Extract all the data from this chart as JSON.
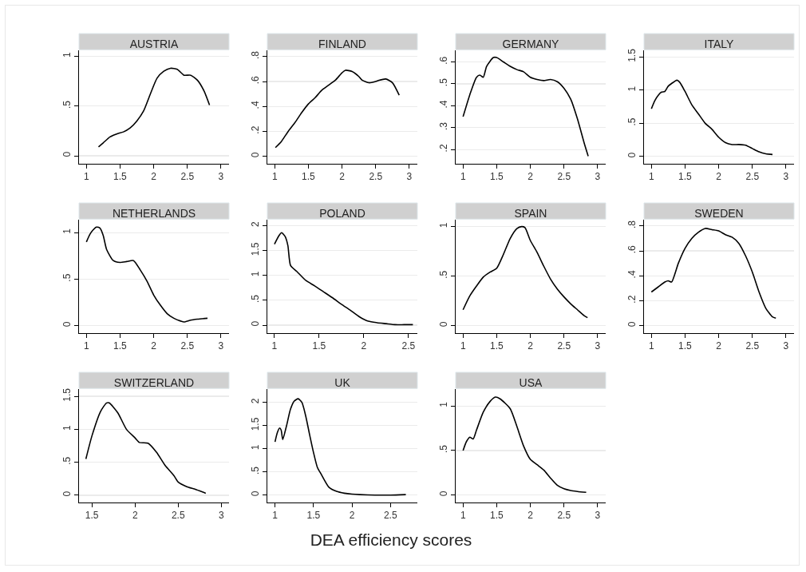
{
  "chart_data": [
    {
      "type": "line",
      "title": "AUSTRIA",
      "grid": "y",
      "xlim": [
        0.89,
        3.12
      ],
      "xticks": [
        1,
        1.5,
        2,
        2.5,
        3
      ],
      "ylim": [
        -0.08,
        1.06
      ],
      "yticks": [
        0,
        {
          "value": 0.5,
          "label": ".5"
        },
        1
      ],
      "x": [
        1.18,
        1.25,
        1.35,
        1.45,
        1.55,
        1.65,
        1.75,
        1.85,
        1.95,
        2.05,
        2.15,
        2.25,
        2.35,
        2.45,
        2.55,
        2.65,
        2.75,
        2.83
      ],
      "series": [
        {
          "color": "#000000",
          "values": [
            0.09,
            0.13,
            0.19,
            0.22,
            0.24,
            0.28,
            0.35,
            0.45,
            0.62,
            0.78,
            0.85,
            0.88,
            0.87,
            0.81,
            0.81,
            0.76,
            0.65,
            0.51
          ]
        }
      ]
    },
    {
      "type": "line",
      "title": "FINLAND",
      "grid": "y",
      "xlim": [
        0.89,
        3.12
      ],
      "xticks": [
        1,
        1.5,
        2,
        2.5,
        3
      ],
      "ylim": [
        -0.06,
        0.85
      ],
      "yticks": [
        0,
        {
          "value": 0.2,
          "label": ".2"
        },
        {
          "value": 0.4,
          "label": ".4"
        },
        {
          "value": 0.6,
          "label": ".6"
        },
        {
          "value": 0.8,
          "label": ".8"
        }
      ],
      "x": [
        1.01,
        1.1,
        1.2,
        1.3,
        1.4,
        1.5,
        1.6,
        1.7,
        1.8,
        1.9,
        2.0,
        2.05,
        2.15,
        2.25,
        2.3,
        2.4,
        2.5,
        2.55,
        2.65,
        2.75,
        2.85
      ],
      "series": [
        {
          "color": "#000000",
          "values": [
            0.07,
            0.12,
            0.2,
            0.27,
            0.35,
            0.42,
            0.47,
            0.53,
            0.57,
            0.61,
            0.67,
            0.69,
            0.68,
            0.64,
            0.61,
            0.59,
            0.6,
            0.61,
            0.62,
            0.59,
            0.49
          ]
        }
      ]
    },
    {
      "type": "line",
      "title": "GERMANY",
      "grid": "y",
      "xlim": [
        0.89,
        3.12
      ],
      "xticks": [
        1,
        1.5,
        2,
        2.5,
        3
      ],
      "ylim": [
        0.135,
        0.653
      ],
      "yticks": [
        {
          "value": 0.2,
          "label": ".2"
        },
        {
          "value": 0.3,
          "label": ".3"
        },
        {
          "value": 0.4,
          "label": ".4"
        },
        {
          "value": 0.5,
          "label": ".5"
        },
        {
          "value": 0.6,
          "label": ".6"
        }
      ],
      "x": [
        1.0,
        1.1,
        1.2,
        1.25,
        1.3,
        1.35,
        1.45,
        1.5,
        1.6,
        1.7,
        1.8,
        1.9,
        2.0,
        2.1,
        2.2,
        2.3,
        2.4,
        2.5,
        2.6,
        2.7,
        2.8,
        2.86
      ],
      "series": [
        {
          "color": "#000000",
          "values": [
            0.35,
            0.45,
            0.53,
            0.54,
            0.53,
            0.58,
            0.62,
            0.62,
            0.6,
            0.58,
            0.565,
            0.555,
            0.53,
            0.52,
            0.515,
            0.52,
            0.51,
            0.48,
            0.43,
            0.34,
            0.23,
            0.17
          ]
        }
      ]
    },
    {
      "type": "line",
      "title": "ITALY",
      "grid": "y",
      "xlim": [
        0.89,
        3.12
      ],
      "xticks": [
        1,
        1.5,
        2,
        2.5,
        3
      ],
      "ylim": [
        -0.11,
        1.6
      ],
      "yticks": [
        0,
        {
          "value": 0.5,
          "label": ".5"
        },
        1,
        1.5
      ],
      "x": [
        1.0,
        1.05,
        1.1,
        1.15,
        1.2,
        1.25,
        1.3,
        1.38,
        1.42,
        1.5,
        1.6,
        1.7,
        1.8,
        1.9,
        2.0,
        2.1,
        2.2,
        2.3,
        2.4,
        2.5,
        2.6,
        2.7,
        2.8
      ],
      "series": [
        {
          "color": "#000000",
          "values": [
            0.72,
            0.84,
            0.92,
            0.97,
            0.98,
            1.06,
            1.1,
            1.15,
            1.12,
            0.98,
            0.78,
            0.64,
            0.5,
            0.41,
            0.29,
            0.21,
            0.18,
            0.18,
            0.17,
            0.12,
            0.07,
            0.04,
            0.03
          ]
        }
      ]
    },
    {
      "type": "line",
      "title": "NETHERLANDS",
      "grid": "y",
      "xlim": [
        0.89,
        3.12
      ],
      "xticks": [
        1,
        1.5,
        2,
        2.5,
        3
      ],
      "ylim": [
        -0.08,
        1.14
      ],
      "yticks": [
        0,
        {
          "value": 0.5,
          "label": ".5"
        },
        1
      ],
      "x": [
        1.0,
        1.05,
        1.1,
        1.15,
        1.2,
        1.25,
        1.3,
        1.4,
        1.5,
        1.6,
        1.7,
        1.8,
        1.9,
        2.0,
        2.1,
        2.2,
        2.3,
        2.4,
        2.45,
        2.55,
        2.65,
        2.8
      ],
      "series": [
        {
          "color": "#000000",
          "values": [
            0.9,
            0.98,
            1.03,
            1.06,
            1.05,
            0.97,
            0.82,
            0.7,
            0.68,
            0.69,
            0.7,
            0.6,
            0.48,
            0.33,
            0.22,
            0.13,
            0.08,
            0.05,
            0.04,
            0.06,
            0.07,
            0.08
          ]
        }
      ]
    },
    {
      "type": "line",
      "title": "POLAND",
      "grid": "y",
      "xlim": [
        0.92,
        2.6
      ],
      "xticks": [
        1,
        1.5,
        2,
        2.5
      ],
      "ylim": [
        -0.16,
        2.12
      ],
      "yticks": [
        0,
        {
          "value": 0.5,
          "label": ".5"
        },
        1,
        1.5,
        2
      ],
      "x": [
        1.0,
        1.05,
        1.08,
        1.12,
        1.15,
        1.18,
        1.25,
        1.35,
        1.45,
        1.55,
        1.65,
        1.75,
        1.85,
        1.95,
        2.05,
        2.15,
        2.25,
        2.35,
        2.45,
        2.55
      ],
      "series": [
        {
          "color": "#000000",
          "values": [
            1.63,
            1.8,
            1.86,
            1.78,
            1.6,
            1.2,
            1.08,
            0.9,
            0.79,
            0.67,
            0.55,
            0.42,
            0.3,
            0.17,
            0.08,
            0.05,
            0.03,
            0.01,
            0.01,
            0.01
          ]
        }
      ]
    },
    {
      "type": "line",
      "title": "SPAIN",
      "grid": "y",
      "xlim": [
        0.89,
        3.12
      ],
      "xticks": [
        1,
        1.5,
        2,
        2.5,
        3
      ],
      "ylim": [
        -0.076,
        1.07
      ],
      "yticks": [
        0,
        {
          "value": 0.5,
          "label": ".5"
        },
        1
      ],
      "x": [
        1.0,
        1.1,
        1.2,
        1.3,
        1.4,
        1.5,
        1.6,
        1.7,
        1.8,
        1.87,
        1.92,
        2.0,
        2.1,
        2.2,
        2.3,
        2.4,
        2.5,
        2.6,
        2.7,
        2.8,
        2.85
      ],
      "series": [
        {
          "color": "#000000",
          "values": [
            0.16,
            0.3,
            0.4,
            0.49,
            0.54,
            0.58,
            0.72,
            0.88,
            0.98,
            1.0,
            0.99,
            0.86,
            0.74,
            0.6,
            0.47,
            0.37,
            0.29,
            0.22,
            0.16,
            0.1,
            0.08
          ]
        }
      ]
    },
    {
      "type": "line",
      "title": "SWEDEN",
      "grid": "y",
      "xlim": [
        0.89,
        3.12
      ],
      "xticks": [
        1,
        1.5,
        2,
        2.5,
        3
      ],
      "ylim": [
        -0.06,
        0.85
      ],
      "yticks": [
        0,
        {
          "value": 0.2,
          "label": ".2"
        },
        {
          "value": 0.4,
          "label": ".4"
        },
        {
          "value": 0.6,
          "label": ".6"
        },
        {
          "value": 0.8,
          "label": ".8"
        }
      ],
      "x": [
        1.0,
        1.1,
        1.2,
        1.25,
        1.3,
        1.4,
        1.5,
        1.6,
        1.7,
        1.8,
        1.9,
        2.0,
        2.1,
        2.2,
        2.3,
        2.4,
        2.5,
        2.6,
        2.7,
        2.8,
        2.85
      ],
      "series": [
        {
          "color": "#000000",
          "values": [
            0.27,
            0.31,
            0.35,
            0.36,
            0.35,
            0.5,
            0.62,
            0.7,
            0.75,
            0.78,
            0.77,
            0.76,
            0.73,
            0.71,
            0.66,
            0.56,
            0.43,
            0.27,
            0.14,
            0.07,
            0.06
          ]
        }
      ]
    },
    {
      "type": "line",
      "title": "SWITZERLAND",
      "grid": "y",
      "xlim": [
        1.35,
        3.09
      ],
      "xticks": [
        1.5,
        2,
        2.5,
        3
      ],
      "ylim": [
        -0.11,
        1.61
      ],
      "yticks": [
        0,
        {
          "value": 0.5,
          "label": ".5"
        },
        1,
        1.5
      ],
      "x": [
        1.43,
        1.5,
        1.6,
        1.67,
        1.7,
        1.8,
        1.9,
        2.0,
        2.05,
        2.15,
        2.25,
        2.35,
        2.45,
        2.5,
        2.6,
        2.7,
        2.8,
        2.82
      ],
      "series": [
        {
          "color": "#000000",
          "values": [
            0.55,
            0.9,
            1.27,
            1.4,
            1.4,
            1.25,
            1.0,
            0.87,
            0.8,
            0.79,
            0.65,
            0.45,
            0.3,
            0.2,
            0.13,
            0.09,
            0.04,
            0.03
          ]
        }
      ]
    },
    {
      "type": "line",
      "title": "UK",
      "xlabel": "DEA efficiency scores",
      "grid": "y",
      "xlim": [
        0.9,
        2.85
      ],
      "xticks": [
        1,
        1.5,
        2,
        2.5
      ],
      "ylim": [
        -0.16,
        2.29
      ],
      "yticks": [
        0,
        {
          "value": 0.5,
          "label": ".5"
        },
        1,
        1.5,
        2
      ],
      "x": [
        1.0,
        1.03,
        1.06,
        1.08,
        1.1,
        1.15,
        1.2,
        1.25,
        1.3,
        1.35,
        1.4,
        1.45,
        1.5,
        1.55,
        1.6,
        1.7,
        1.8,
        1.9,
        2.0,
        2.1,
        2.3,
        2.5,
        2.7
      ],
      "series": [
        {
          "color": "#000000",
          "values": [
            1.15,
            1.35,
            1.45,
            1.4,
            1.2,
            1.5,
            1.85,
            2.03,
            2.08,
            2.0,
            1.7,
            1.3,
            0.92,
            0.6,
            0.45,
            0.17,
            0.08,
            0.04,
            0.02,
            0.01,
            0,
            0,
            0.01
          ]
        }
      ]
    },
    {
      "type": "line",
      "title": "USA",
      "grid": "y",
      "xlim": [
        0.89,
        3.12
      ],
      "xticks": [
        1,
        1.5,
        2,
        2.5,
        3
      ],
      "ylim": [
        -0.084,
        1.19
      ],
      "yticks": [
        0,
        {
          "value": 0.5,
          "label": ".5"
        },
        1
      ],
      "x": [
        1.0,
        1.05,
        1.1,
        1.15,
        1.2,
        1.3,
        1.4,
        1.48,
        1.55,
        1.7,
        1.8,
        1.9,
        2.0,
        2.1,
        2.2,
        2.3,
        2.4,
        2.5,
        2.6,
        2.7,
        2.83
      ],
      "series": [
        {
          "color": "#000000",
          "values": [
            0.5,
            0.6,
            0.65,
            0.63,
            0.73,
            0.93,
            1.05,
            1.1,
            1.08,
            0.97,
            0.77,
            0.55,
            0.4,
            0.34,
            0.28,
            0.19,
            0.11,
            0.07,
            0.05,
            0.04,
            0.03
          ]
        }
      ]
    }
  ]
}
